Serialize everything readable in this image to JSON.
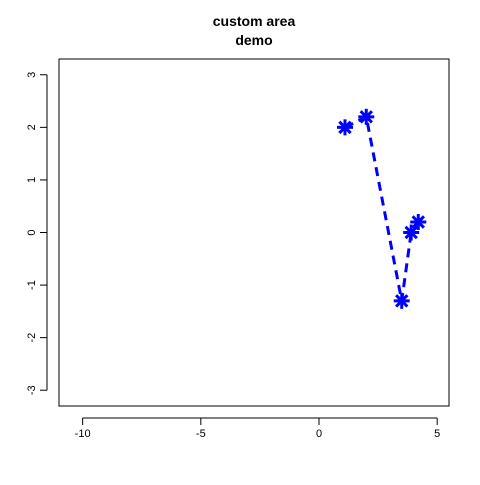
{
  "chart_data": {
    "type": "line",
    "title_lines": [
      "custom area",
      "demo"
    ],
    "xlabel": "",
    "ylabel": "",
    "xlim": [
      -11,
      5.5
    ],
    "ylim": [
      -3.3,
      3.3
    ],
    "x_ticks": [
      -10,
      -5,
      0,
      5
    ],
    "x_tick_labels": [
      "-10",
      "-5",
      "0",
      "5"
    ],
    "y_ticks": [
      -3,
      -2,
      -1,
      0,
      1,
      2,
      3
    ],
    "y_tick_labels": [
      "-3",
      "-2",
      "-1",
      "0",
      "1",
      "2",
      "3"
    ],
    "grid": false,
    "legend": "none",
    "series": [
      {
        "x": [
          1.1,
          2.0,
          3.5,
          3.9,
          4.2
        ],
        "y": [
          2.0,
          2.2,
          -1.3,
          0.0,
          0.2
        ],
        "color": "#0000ff",
        "line_style": "dashed",
        "marker": "asterisk"
      }
    ]
  }
}
